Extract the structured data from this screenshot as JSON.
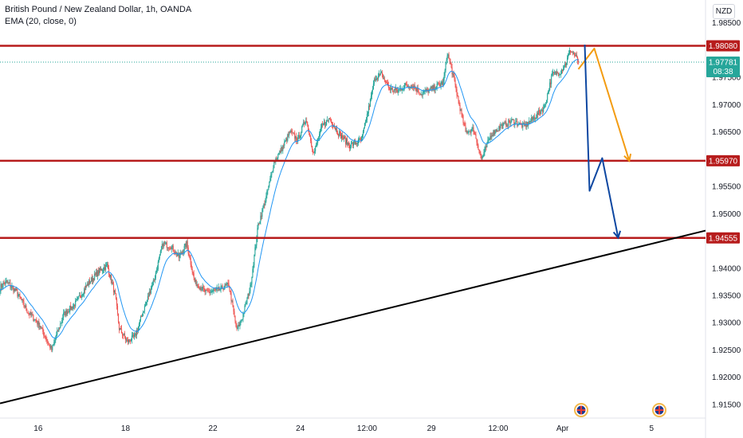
{
  "header": {
    "title": "British Pound / New Zealand Dollar, 1h, OANDA",
    "indicator": "EMA (20, close, 0)",
    "currency": "NZD"
  },
  "colors": {
    "up": "#26a69a",
    "down": "#ef5350",
    "ema": "#2196f3",
    "level": "#b71c1c",
    "trendline": "#000000",
    "orange_path": "#f39c12",
    "blue_path": "#0d47a1",
    "last_price": "#26a69a",
    "last_price_line": "#26a69a"
  },
  "chart_data": {
    "type": "candlestick",
    "y_axis": {
      "range": [
        1.9125,
        1.9892
      ],
      "ticks": [
        "1.98500",
        "1.97500",
        "1.97000",
        "1.96500",
        "1.95500",
        "1.95000",
        "1.94000",
        "1.93500",
        "1.93000",
        "1.92500",
        "1.92000",
        "1.91500"
      ]
    },
    "x_axis": {
      "range_bars": [
        0,
        888
      ],
      "ticks": [
        {
          "label": "16",
          "bar": 48
        },
        {
          "label": "18",
          "bar": 158
        },
        {
          "label": "22",
          "bar": 268
        },
        {
          "label": "24",
          "bar": 378
        },
        {
          "label": "12:00",
          "bar": 462
        },
        {
          "label": "29",
          "bar": 543
        },
        {
          "label": "12:00",
          "bar": 627
        },
        {
          "label": "Apr",
          "bar": 708
        },
        {
          "label": "5",
          "bar": 820
        }
      ]
    },
    "levels": [
      {
        "value": 1.9808,
        "label": "1.98080"
      },
      {
        "value": 1.9597,
        "label": "1.95970"
      },
      {
        "value": 1.94555,
        "label": "1.94555"
      }
    ],
    "last_price": {
      "value": 1.97781,
      "label": "1.97781",
      "countdown": "08:38"
    },
    "trendline": [
      {
        "bar": 0,
        "value": 1.9152
      },
      {
        "bar": 888,
        "value": 1.9469
      }
    ],
    "projections": {
      "orange": [
        {
          "bar": 728,
          "value": 1.9765
        },
        {
          "bar": 748,
          "value": 1.9803
        },
        {
          "bar": 792,
          "value": 1.9597
        }
      ],
      "blue": [
        {
          "bar": 736,
          "value": 1.981
        },
        {
          "bar": 742,
          "value": 1.9542
        },
        {
          "bar": 758,
          "value": 1.9602
        },
        {
          "bar": 778,
          "value": 1.9456
        }
      ]
    },
    "anchors": [
      {
        "bar": 0,
        "value": 1.9365
      },
      {
        "bar": 8,
        "value": 1.9375
      },
      {
        "bar": 20,
        "value": 1.9358
      },
      {
        "bar": 35,
        "value": 1.932
      },
      {
        "bar": 50,
        "value": 1.9295
      },
      {
        "bar": 65,
        "value": 1.925
      },
      {
        "bar": 80,
        "value": 1.9315
      },
      {
        "bar": 95,
        "value": 1.9335
      },
      {
        "bar": 110,
        "value": 1.937
      },
      {
        "bar": 125,
        "value": 1.9395
      },
      {
        "bar": 135,
        "value": 1.9405
      },
      {
        "bar": 145,
        "value": 1.935
      },
      {
        "bar": 150,
        "value": 1.929
      },
      {
        "bar": 160,
        "value": 1.9265
      },
      {
        "bar": 170,
        "value": 1.9275
      },
      {
        "bar": 180,
        "value": 1.932
      },
      {
        "bar": 195,
        "value": 1.9385
      },
      {
        "bar": 205,
        "value": 1.9445
      },
      {
        "bar": 215,
        "value": 1.944
      },
      {
        "bar": 225,
        "value": 1.942
      },
      {
        "bar": 235,
        "value": 1.9445
      },
      {
        "bar": 245,
        "value": 1.9375
      },
      {
        "bar": 260,
        "value": 1.9355
      },
      {
        "bar": 275,
        "value": 1.936
      },
      {
        "bar": 288,
        "value": 1.937
      },
      {
        "bar": 298,
        "value": 1.9285
      },
      {
        "bar": 305,
        "value": 1.931
      },
      {
        "bar": 315,
        "value": 1.9365
      },
      {
        "bar": 325,
        "value": 1.948
      },
      {
        "bar": 335,
        "value": 1.953
      },
      {
        "bar": 345,
        "value": 1.9595
      },
      {
        "bar": 355,
        "value": 1.962
      },
      {
        "bar": 365,
        "value": 1.965
      },
      {
        "bar": 375,
        "value": 1.9635
      },
      {
        "bar": 385,
        "value": 1.9675
      },
      {
        "bar": 395,
        "value": 1.961
      },
      {
        "bar": 405,
        "value": 1.966
      },
      {
        "bar": 415,
        "value": 1.9675
      },
      {
        "bar": 425,
        "value": 1.965
      },
      {
        "bar": 440,
        "value": 1.9625
      },
      {
        "bar": 455,
        "value": 1.9635
      },
      {
        "bar": 465,
        "value": 1.97
      },
      {
        "bar": 472,
        "value": 1.975
      },
      {
        "bar": 480,
        "value": 1.9755
      },
      {
        "bar": 490,
        "value": 1.973
      },
      {
        "bar": 500,
        "value": 1.9725
      },
      {
        "bar": 510,
        "value": 1.9735
      },
      {
        "bar": 520,
        "value": 1.9735
      },
      {
        "bar": 530,
        "value": 1.972
      },
      {
        "bar": 545,
        "value": 1.973
      },
      {
        "bar": 558,
        "value": 1.974
      },
      {
        "bar": 563,
        "value": 1.9795
      },
      {
        "bar": 570,
        "value": 1.9755
      },
      {
        "bar": 578,
        "value": 1.97
      },
      {
        "bar": 586,
        "value": 1.965
      },
      {
        "bar": 596,
        "value": 1.9655
      },
      {
        "bar": 606,
        "value": 1.96
      },
      {
        "bar": 618,
        "value": 1.9645
      },
      {
        "bar": 630,
        "value": 1.966
      },
      {
        "bar": 645,
        "value": 1.967
      },
      {
        "bar": 660,
        "value": 1.966
      },
      {
        "bar": 675,
        "value": 1.968
      },
      {
        "bar": 685,
        "value": 1.9695
      },
      {
        "bar": 695,
        "value": 1.9755
      },
      {
        "bar": 705,
        "value": 1.976
      },
      {
        "bar": 712,
        "value": 1.9775
      },
      {
        "bar": 718,
        "value": 1.98
      },
      {
        "bar": 724,
        "value": 1.979
      },
      {
        "bar": 728,
        "value": 1.9778
      }
    ]
  }
}
